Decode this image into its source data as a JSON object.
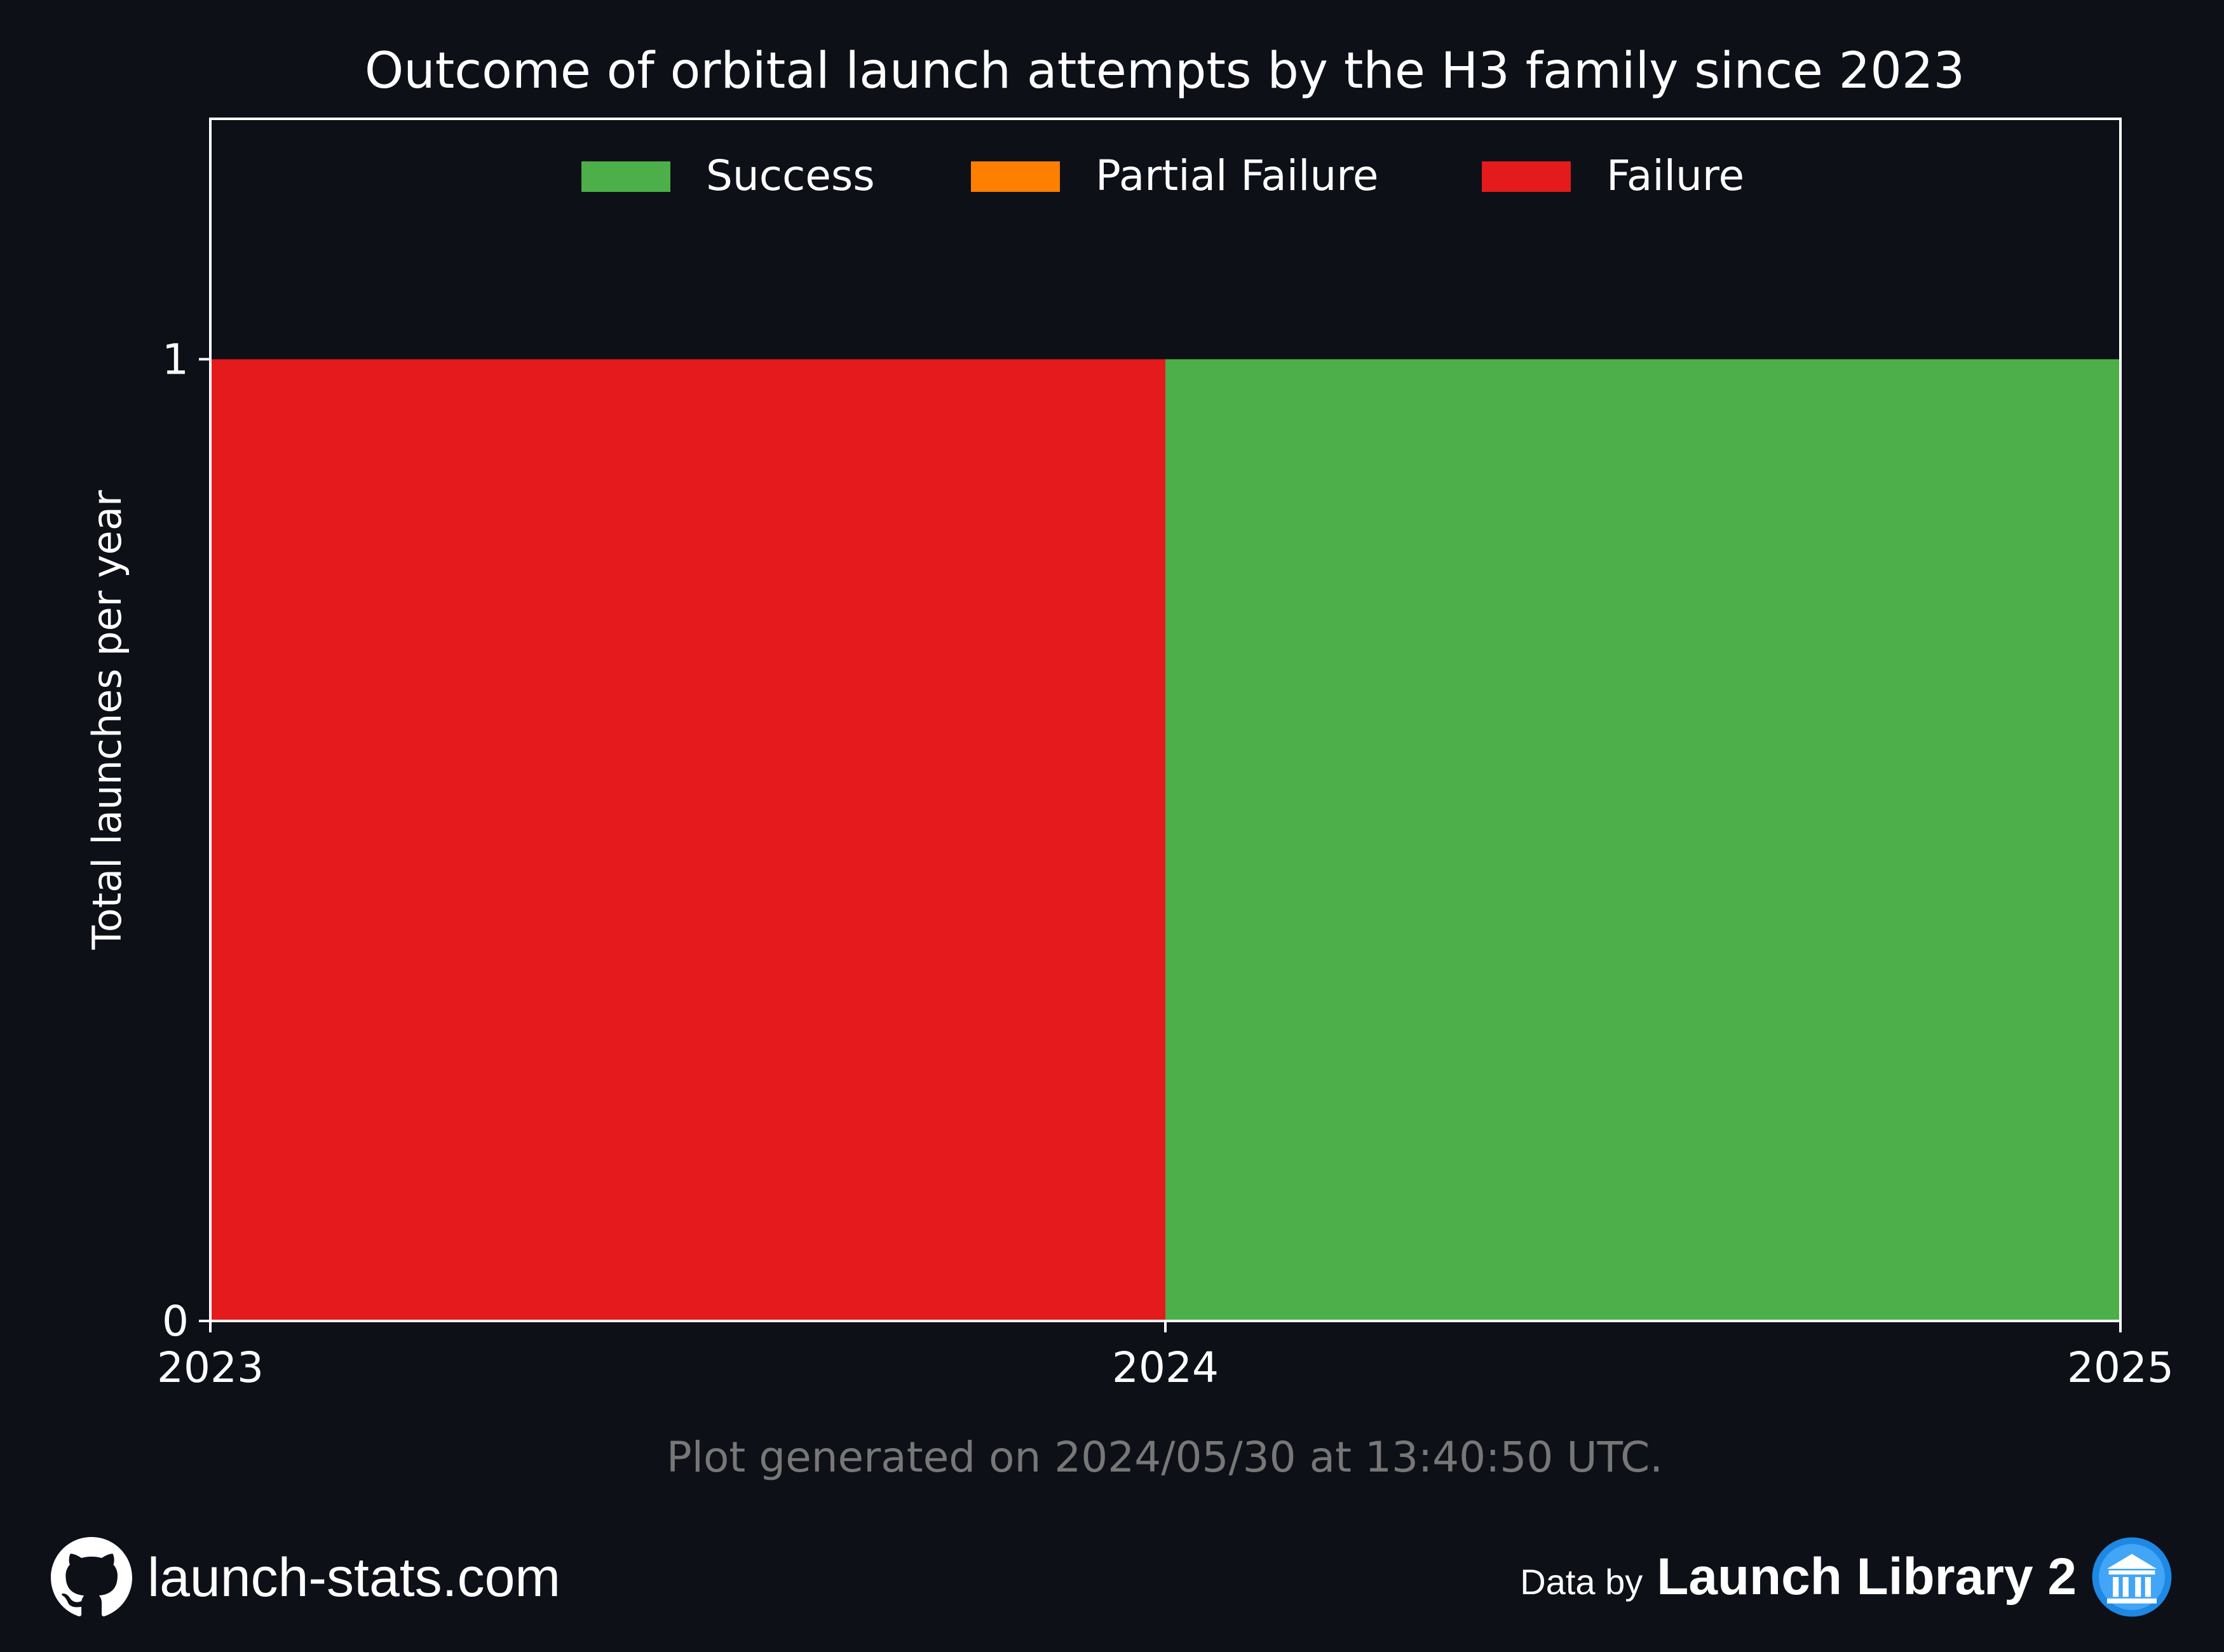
{
  "chart_data": {
    "type": "bar",
    "stacked": true,
    "title": "Outcome of orbital launch attempts by the H3 family since 2023",
    "xlabel": "",
    "ylabel": "Total launches per year",
    "x_ticks": [
      "2023",
      "2024",
      "2025"
    ],
    "y_ticks": [
      "0",
      "1"
    ],
    "ylim": [
      0,
      1.25
    ],
    "categories": [
      "2023",
      "2024"
    ],
    "series": [
      {
        "name": "Success",
        "color": "#4daf4a",
        "values": [
          0,
          1
        ]
      },
      {
        "name": "Partial Failure",
        "color": "#ff7f00",
        "values": [
          0,
          0
        ]
      },
      {
        "name": "Failure",
        "color": "#e41a1c",
        "values": [
          1,
          0
        ]
      }
    ],
    "legend_position": "top-center",
    "grid": false
  },
  "footer": {
    "generated_text": "Plot generated on 2024/05/30 at 13:40:50 UTC.",
    "site": "launch-stats.com",
    "data_by": "Data by",
    "source": "Launch Library 2",
    "github_icon": "github-icon",
    "ll2_icon": "launch-library-icon"
  },
  "colors": {
    "background": "#0d1017",
    "axes": "#ffffff",
    "muted_text": "#777777"
  }
}
